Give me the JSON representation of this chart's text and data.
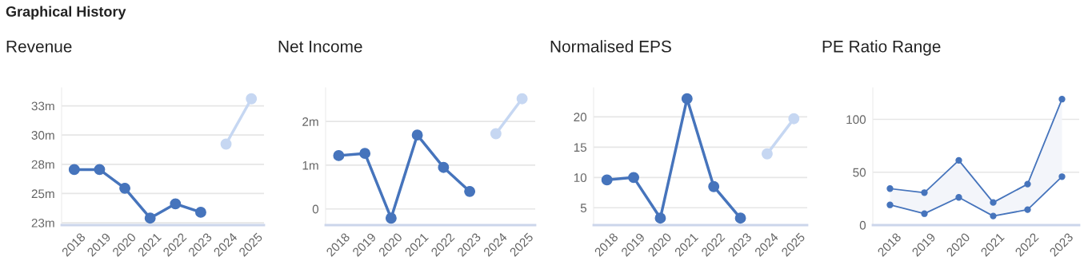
{
  "chart_data": [
    {
      "type": "line",
      "title": "Revenue",
      "annotations": [
        "Graphical History"
      ],
      "categories": [
        "2018",
        "2019",
        "2020",
        "2021",
        "2022",
        "2023",
        "2024",
        "2025"
      ],
      "series": [
        {
          "color": "#4674bc",
          "values": [
            27.05,
            27.05,
            25.45,
            22.9,
            24.12,
            23.4,
            null,
            null
          ]
        },
        {
          "color": "#c6d7f2",
          "values": [
            null,
            null,
            null,
            null,
            null,
            null,
            29.23,
            33.1
          ]
        }
      ],
      "ylim": [
        22.3,
        34.04
      ],
      "yticks": [
        {
          "value": 22.5,
          "label": "23m"
        },
        {
          "value": 25,
          "label": "25m"
        },
        {
          "value": 27.5,
          "label": "28m"
        },
        {
          "value": 30,
          "label": "30m"
        },
        {
          "value": 32.5,
          "label": "33m"
        }
      ],
      "grid": "y",
      "marker": "circle",
      "line_style": "solid"
    },
    {
      "type": "line",
      "title": "Net Income",
      "categories": [
        "2018",
        "2019",
        "2020",
        "2021",
        "2022",
        "2023",
        "2024",
        "2025"
      ],
      "series": [
        {
          "color": "#4674bc",
          "values": [
            1.22,
            1.27,
            -0.21,
            1.69,
            0.95,
            0.4,
            null,
            null
          ]
        },
        {
          "color": "#c6d7f2",
          "values": [
            null,
            null,
            null,
            null,
            null,
            null,
            1.72,
            2.52
          ]
        }
      ],
      "ylim": [
        -0.37,
        2.77
      ],
      "yticks": [
        {
          "value": 0,
          "label": "0"
        },
        {
          "value": 1,
          "label": "1m"
        },
        {
          "value": 2,
          "label": "2m"
        }
      ],
      "grid": "y",
      "marker": "circle",
      "line_style": "solid"
    },
    {
      "type": "line",
      "title": "Normalised EPS",
      "categories": [
        "2018",
        "2019",
        "2020",
        "2021",
        "2022",
        "2023",
        "2024",
        "2025"
      ],
      "series": [
        {
          "color": "#4674bc",
          "values": [
            9.6,
            10.0,
            3.3,
            23.0,
            8.5,
            3.3,
            null,
            null
          ]
        },
        {
          "color": "#c6d7f2",
          "values": [
            null,
            null,
            null,
            null,
            null,
            null,
            13.9,
            19.7
          ]
        }
      ],
      "ylim": [
        2.14,
        24.8
      ],
      "yticks": [
        5,
        10,
        15,
        20
      ],
      "grid": "y",
      "marker": "circle",
      "line_style": "solid"
    },
    {
      "type": "line",
      "title": "PE Ratio Range",
      "categories": [
        "2018",
        "2019",
        "2020",
        "2021",
        "2022",
        "2023"
      ],
      "series": [
        {
          "color": "#4674bc",
          "values": [
            19.1,
            10.8,
            26.2,
            8.6,
            14.6,
            45.8
          ]
        },
        {
          "color": "#4674bc",
          "values": [
            34.5,
            30.7,
            61.2,
            21.4,
            38.8,
            119.1
          ],
          "lower": [
            19.1,
            10.8,
            26.2,
            8.6,
            14.6,
            45.8
          ],
          "upper": [
            34.5,
            30.7,
            61.2,
            21.4,
            38.8,
            119.1
          ]
        }
      ],
      "ylim": [
        0,
        129.8
      ],
      "yticks": [
        0,
        50,
        100
      ],
      "grid": "y",
      "marker": "circle",
      "line_style": "solid"
    }
  ]
}
